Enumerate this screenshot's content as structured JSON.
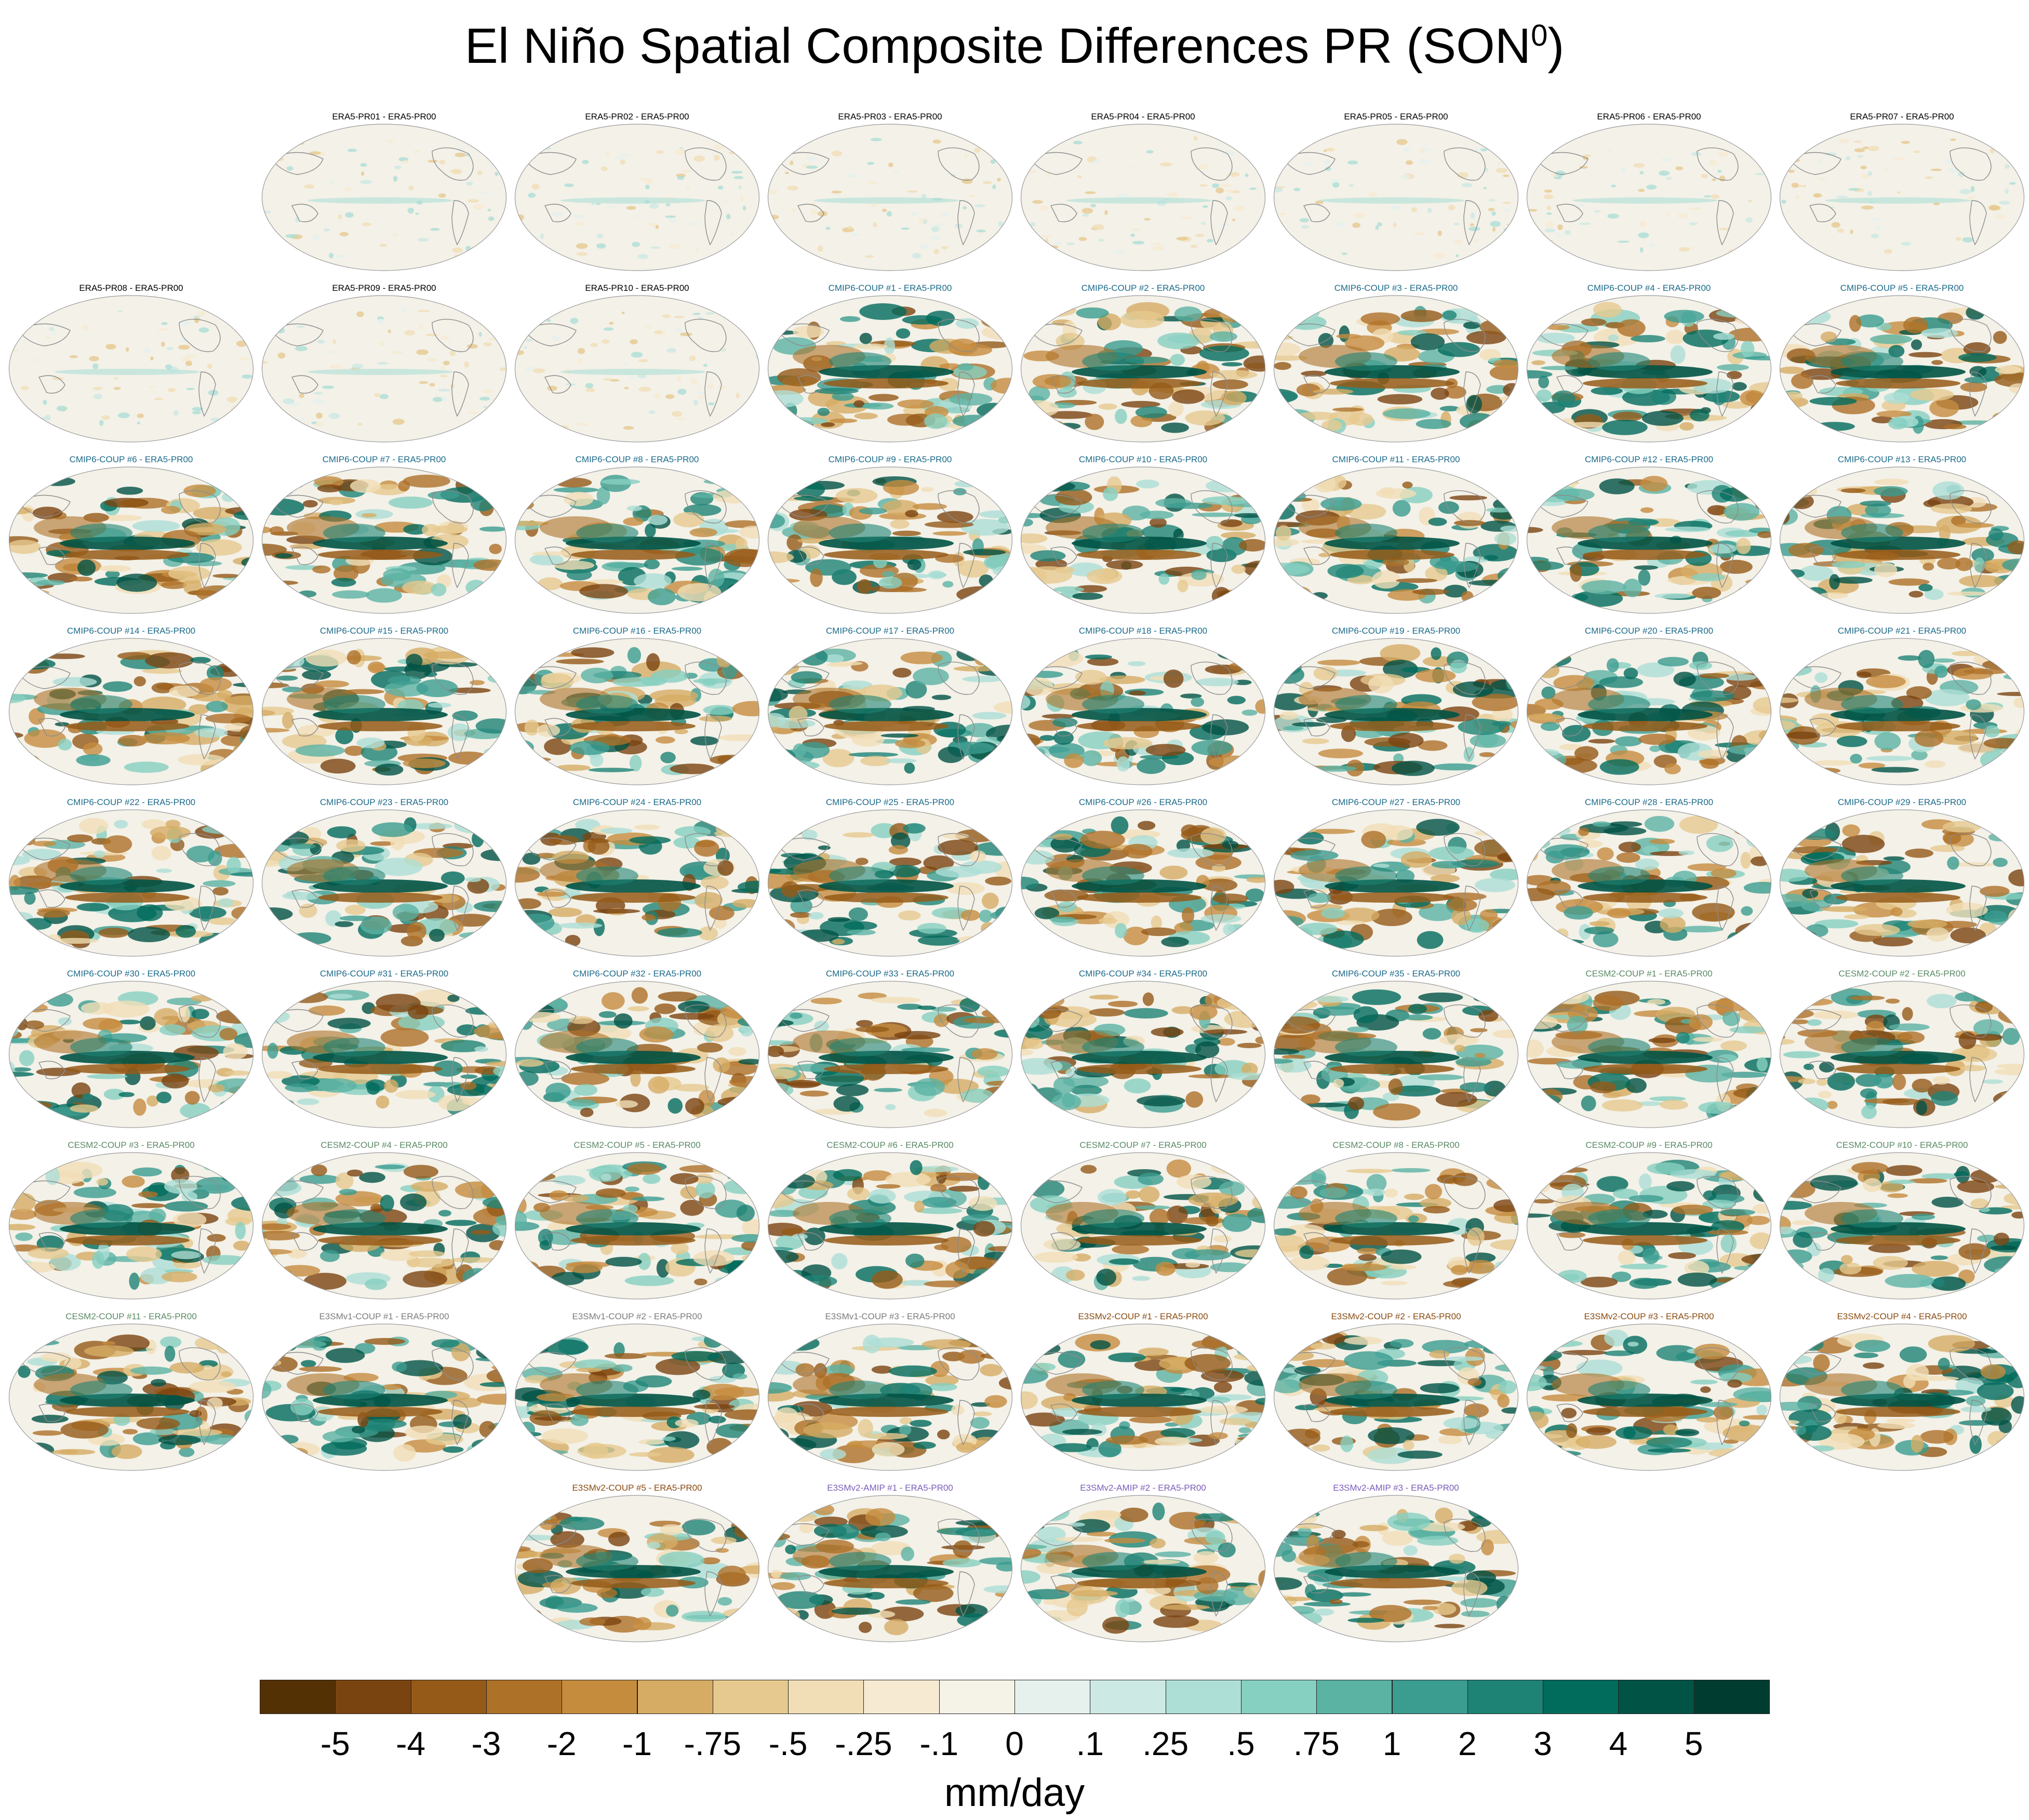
{
  "title": "El Niño Spatial Composite Differences PR (SON",
  "title_sup": "0",
  "title_close": ")",
  "colors": {
    "ERA5": "#000000",
    "CMIP6": "#1b6a8a",
    "CESM2": "#5a8a64",
    "E3SMv1": "#7b7b7b",
    "E3SMv2-COUP": "#8a4a10",
    "E3SMv2-AMIP": "#7a5cb8",
    "ocean": "#f3f1e8",
    "coast": "#8c8c8c"
  },
  "panels": [
    {
      "label": "ERA5-PR01 - ERA5-PR00",
      "group": "ERA5"
    },
    {
      "label": "ERA5-PR02 - ERA5-PR00",
      "group": "ERA5"
    },
    {
      "label": "ERA5-PR03 - ERA5-PR00",
      "group": "ERA5"
    },
    {
      "label": "ERA5-PR04 - ERA5-PR00",
      "group": "ERA5"
    },
    {
      "label": "ERA5-PR05 - ERA5-PR00",
      "group": "ERA5"
    },
    {
      "label": "ERA5-PR06 - ERA5-PR00",
      "group": "ERA5"
    },
    {
      "label": "ERA5-PR07 - ERA5-PR00",
      "group": "ERA5"
    },
    {
      "label": "ERA5-PR08 - ERA5-PR00",
      "group": "ERA5"
    },
    {
      "label": "ERA5-PR09 - ERA5-PR00",
      "group": "ERA5"
    },
    {
      "label": "ERA5-PR10 - ERA5-PR00",
      "group": "ERA5"
    },
    {
      "label": "CMIP6-COUP  #1 - ERA5-PR00",
      "group": "CMIP6"
    },
    {
      "label": "CMIP6-COUP  #2 - ERA5-PR00",
      "group": "CMIP6"
    },
    {
      "label": "CMIP6-COUP  #3 - ERA5-PR00",
      "group": "CMIP6"
    },
    {
      "label": "CMIP6-COUP  #4 - ERA5-PR00",
      "group": "CMIP6"
    },
    {
      "label": "CMIP6-COUP  #5 - ERA5-PR00",
      "group": "CMIP6"
    },
    {
      "label": "CMIP6-COUP  #6 - ERA5-PR00",
      "group": "CMIP6"
    },
    {
      "label": "CMIP6-COUP  #7 - ERA5-PR00",
      "group": "CMIP6"
    },
    {
      "label": "CMIP6-COUP  #8 - ERA5-PR00",
      "group": "CMIP6"
    },
    {
      "label": "CMIP6-COUP  #9 - ERA5-PR00",
      "group": "CMIP6"
    },
    {
      "label": "CMIP6-COUP  #10 - ERA5-PR00",
      "group": "CMIP6"
    },
    {
      "label": "CMIP6-COUP  #11 - ERA5-PR00",
      "group": "CMIP6"
    },
    {
      "label": "CMIP6-COUP  #12 - ERA5-PR00",
      "group": "CMIP6"
    },
    {
      "label": "CMIP6-COUP  #13 - ERA5-PR00",
      "group": "CMIP6"
    },
    {
      "label": "CMIP6-COUP  #14 - ERA5-PR00",
      "group": "CMIP6"
    },
    {
      "label": "CMIP6-COUP  #15 - ERA5-PR00",
      "group": "CMIP6"
    },
    {
      "label": "CMIP6-COUP  #16 - ERA5-PR00",
      "group": "CMIP6"
    },
    {
      "label": "CMIP6-COUP  #17 - ERA5-PR00",
      "group": "CMIP6"
    },
    {
      "label": "CMIP6-COUP  #18 - ERA5-PR00",
      "group": "CMIP6"
    },
    {
      "label": "CMIP6-COUP  #19 - ERA5-PR00",
      "group": "CMIP6"
    },
    {
      "label": "CMIP6-COUP  #20 - ERA5-PR00",
      "group": "CMIP6"
    },
    {
      "label": "CMIP6-COUP  #21 - ERA5-PR00",
      "group": "CMIP6"
    },
    {
      "label": "CMIP6-COUP  #22 - ERA5-PR00",
      "group": "CMIP6"
    },
    {
      "label": "CMIP6-COUP  #23 - ERA5-PR00",
      "group": "CMIP6"
    },
    {
      "label": "CMIP6-COUP  #24 - ERA5-PR00",
      "group": "CMIP6"
    },
    {
      "label": "CMIP6-COUP  #25 - ERA5-PR00",
      "group": "CMIP6"
    },
    {
      "label": "CMIP6-COUP  #26 - ERA5-PR00",
      "group": "CMIP6"
    },
    {
      "label": "CMIP6-COUP  #27 - ERA5-PR00",
      "group": "CMIP6"
    },
    {
      "label": "CMIP6-COUP  #28 - ERA5-PR00",
      "group": "CMIP6"
    },
    {
      "label": "CMIP6-COUP  #29 - ERA5-PR00",
      "group": "CMIP6"
    },
    {
      "label": "CMIP6-COUP  #30 - ERA5-PR00",
      "group": "CMIP6"
    },
    {
      "label": "CMIP6-COUP  #31 - ERA5-PR00",
      "group": "CMIP6"
    },
    {
      "label": "CMIP6-COUP  #32 - ERA5-PR00",
      "group": "CMIP6"
    },
    {
      "label": "CMIP6-COUP  #33 - ERA5-PR00",
      "group": "CMIP6"
    },
    {
      "label": "CMIP6-COUP  #34 - ERA5-PR00",
      "group": "CMIP6"
    },
    {
      "label": "CMIP6-COUP  #35 - ERA5-PR00",
      "group": "CMIP6"
    },
    {
      "label": "CESM2-COUP  #1 - ERA5-PR00",
      "group": "CESM2"
    },
    {
      "label": "CESM2-COUP  #2 - ERA5-PR00",
      "group": "CESM2"
    },
    {
      "label": "CESM2-COUP  #3 - ERA5-PR00",
      "group": "CESM2"
    },
    {
      "label": "CESM2-COUP  #4 - ERA5-PR00",
      "group": "CESM2"
    },
    {
      "label": "CESM2-COUP  #5 - ERA5-PR00",
      "group": "CESM2"
    },
    {
      "label": "CESM2-COUP  #6 - ERA5-PR00",
      "group": "CESM2"
    },
    {
      "label": "CESM2-COUP  #7 - ERA5-PR00",
      "group": "CESM2"
    },
    {
      "label": "CESM2-COUP  #8 - ERA5-PR00",
      "group": "CESM2"
    },
    {
      "label": "CESM2-COUP  #9 - ERA5-PR00",
      "group": "CESM2"
    },
    {
      "label": "CESM2-COUP  #10 - ERA5-PR00",
      "group": "CESM2"
    },
    {
      "label": "CESM2-COUP  #11 - ERA5-PR00",
      "group": "CESM2"
    },
    {
      "label": "E3SMv1-COUP #1 - ERA5-PR00",
      "group": "E3SMv1"
    },
    {
      "label": "E3SMv1-COUP #2 - ERA5-PR00",
      "group": "E3SMv1"
    },
    {
      "label": "E3SMv1-COUP #3 - ERA5-PR00",
      "group": "E3SMv1"
    },
    {
      "label": "E3SMv2-COUP #1 - ERA5-PR00",
      "group": "E3SMv2-COUP"
    },
    {
      "label": "E3SMv2-COUP #2 - ERA5-PR00",
      "group": "E3SMv2-COUP"
    },
    {
      "label": "E3SMv2-COUP #3 - ERA5-PR00",
      "group": "E3SMv2-COUP"
    },
    {
      "label": "E3SMv2-COUP #4 - ERA5-PR00",
      "group": "E3SMv2-COUP"
    },
    {
      "label": "E3SMv2-COUP #5 - ERA5-PR00",
      "group": "E3SMv2-COUP"
    },
    {
      "label": "E3SMv2-AMIP #1 - ERA5-PR00",
      "group": "E3SMv2-AMIP"
    },
    {
      "label": "E3SMv2-AMIP #2 - ERA5-PR00",
      "group": "E3SMv2-AMIP"
    },
    {
      "label": "E3SMv2-AMIP #3 - ERA5-PR00",
      "group": "E3SMv2-AMIP"
    }
  ],
  "chart_data": {
    "type": "heatmap",
    "title": "El Niño Spatial Composite Differences PR (SON0)",
    "projection": "global map panels",
    "colorbar": {
      "unit": "mm/day",
      "ticks": [
        "-5",
        "-4",
        "-3",
        "-2",
        "-1",
        "-.75",
        "-.5",
        "-.25",
        "-.1",
        "0",
        ".1",
        ".25",
        ".5",
        ".75",
        "1",
        "2",
        "3",
        "4",
        "5"
      ],
      "colors": [
        "#543005",
        "#7a4410",
        "#955a18",
        "#ae7128",
        "#c58c3e",
        "#d6ac64",
        "#e6c98e",
        "#f1deb6",
        "#f6ebd2",
        "#f5f2e8",
        "#e6f1ee",
        "#cde9e4",
        "#addfd6",
        "#86d0c1",
        "#5bb3a4",
        "#3b9c90",
        "#1e8375",
        "#016b5c",
        "#015345",
        "#003c30"
      ]
    }
  }
}
